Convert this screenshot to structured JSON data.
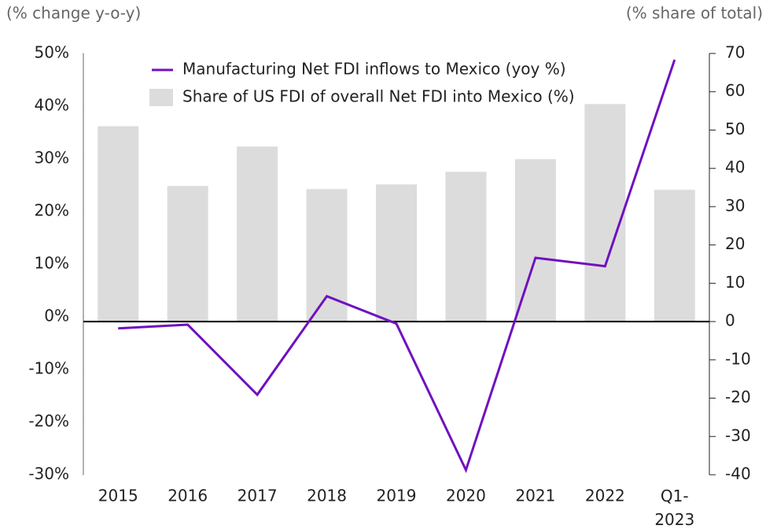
{
  "chart_data": {
    "type": "bar-line",
    "y_label": "(% change y-o-y)",
    "y2_label": "(% share of total)",
    "categories": [
      "2015",
      "2016",
      "2017",
      "2018",
      "2019",
      "2020",
      "2021",
      "2022",
      "Q1-\n2023"
    ],
    "series": [
      {
        "name": "Manufacturing Net FDI inflows to Mexico (yoy %)",
        "type": "line",
        "color": "#7010c0",
        "axis": "y",
        "values": [
          -2.2,
          -1.5,
          -14.8,
          3.9,
          -1.3,
          -29.1,
          11.2,
          9.6,
          48.8
        ]
      },
      {
        "name": "Share of US FDI of overall Net FDI into Mexico (%)",
        "type": "bar",
        "color": "#dcdcdc",
        "axis": "y2",
        "values": [
          51,
          35.4,
          45.7,
          34.6,
          35.8,
          39.1,
          42.4,
          56.8,
          34.4
        ]
      }
    ],
    "ylim": [
      -30,
      50
    ],
    "yticks": [
      {
        "value": -30,
        "label": "-30%"
      },
      {
        "value": -20,
        "label": "-20%"
      },
      {
        "value": -10,
        "label": "-10%"
      },
      {
        "value": 0,
        "label": "0%"
      },
      {
        "value": 10,
        "label": "10%"
      },
      {
        "value": 20,
        "label": "20%"
      },
      {
        "value": 30,
        "label": "30%"
      },
      {
        "value": 40,
        "label": "40%"
      },
      {
        "value": 50,
        "label": "50%"
      }
    ],
    "y2lim": [
      -40,
      70
    ],
    "y2ticks": [
      -40,
      -30,
      -20,
      -10,
      0,
      10,
      20,
      30,
      40,
      50,
      60,
      70
    ],
    "legend": "top-left"
  }
}
